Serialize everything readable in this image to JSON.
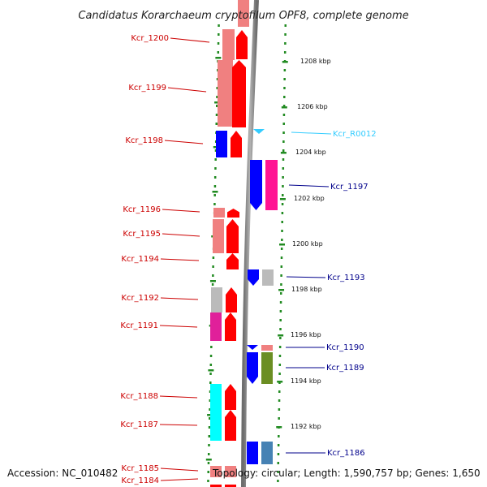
{
  "title": "Candidatus Korarchaeum cryptofilum OPF8, complete genome",
  "accession": "Accession: NC_010482",
  "topology": "Topology: circular; Length: 1,590,757 bp; Genes: 1,650",
  "scale_labels": [
    "1208 kbp",
    "1206 kbp",
    "1204 kbp",
    "1202 kbp",
    "1200 kbp",
    "1198 kbp",
    "1196 kbp",
    "1194 kbp",
    "1192 kbp"
  ],
  "left_genes": [
    "Kcr_1200",
    "Kcr_1199",
    "Kcr_1198",
    "Kcr_1196",
    "Kcr_1195",
    "Kcr_1194",
    "Kcr_1192",
    "Kcr_1191",
    "Kcr_1188",
    "Kcr_1187",
    "Kcr_1185",
    "Kcr_1184"
  ],
  "right_genes": [
    "Kcr_R0012",
    "Kcr_1197",
    "Kcr_1193",
    "Kcr_1190",
    "Kcr_1189",
    "Kcr_1186"
  ],
  "colors": {
    "left_label": "#cc0000",
    "right_label": "#00008b",
    "rna_label": "#33ccff",
    "cds_forward": "#ff0000",
    "cds_reverse": "#0000ff",
    "light_red": "#f08080",
    "gray": "#bbbbbb",
    "magenta": "#e0209a",
    "cyan": "#00ffff",
    "olive": "#6b8e23",
    "steel_blue": "#4682b4",
    "pink": "#ff1493",
    "tick_green": "#228b22"
  }
}
